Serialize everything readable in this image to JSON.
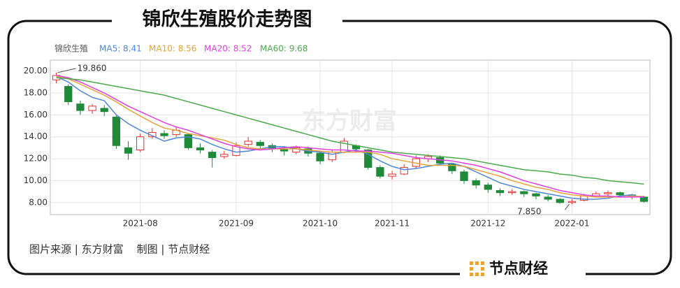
{
  "title": "锦欣生殖股价走势图",
  "source": "图片来源 | 东方财富    制图 | 节点财经",
  "brand": "节点财经",
  "chart_data": {
    "type": "candlestick",
    "stock_name": "锦欣生殖",
    "watermark": "东方财富",
    "categories": [
      null,
      null,
      null,
      null,
      null,
      null,
      null,
      "2021-08",
      null,
      null,
      null,
      null,
      null,
      null,
      null,
      "2021-09",
      null,
      null,
      null,
      null,
      null,
      null,
      "2021-10",
      null,
      null,
      null,
      null,
      null,
      "2021-11",
      null,
      null,
      null,
      null,
      null,
      null,
      null,
      "2021-12",
      null,
      null,
      null,
      null,
      null,
      null,
      "2022-01",
      null,
      null,
      null,
      null,
      null,
      null
    ],
    "open": [
      19.2,
      18.6,
      17.0,
      16.4,
      16.6,
      15.8,
      13.0,
      12.8,
      14.0,
      14.3,
      14.2,
      14.2,
      13.0,
      12.6,
      12.2,
      12.3,
      13.3,
      13.5,
      13.2,
      12.9,
      12.6,
      12.9,
      12.5,
      11.9,
      12.6,
      13.2,
      12.8,
      11.2,
      10.4,
      10.6,
      11.3,
      12.0,
      12.1,
      11.5,
      10.8,
      10.0,
      9.6,
      9.1,
      8.9,
      9.0,
      8.8,
      8.5,
      8.3,
      8.0,
      8.2,
      8.6,
      8.8,
      8.9,
      8.7,
      8.5
    ],
    "close": [
      19.6,
      17.2,
      16.4,
      16.8,
      16.3,
      13.2,
      12.5,
      14.0,
      14.4,
      14.1,
      14.6,
      13.0,
      12.8,
      12.1,
      12.4,
      13.2,
      13.6,
      13.2,
      12.9,
      12.7,
      13.0,
      12.5,
      11.8,
      12.6,
      13.6,
      12.9,
      11.2,
      10.4,
      10.6,
      11.2,
      12.0,
      12.2,
      11.6,
      10.9,
      10.0,
      9.6,
      9.2,
      8.9,
      9.0,
      8.8,
      8.6,
      8.3,
      8.0,
      8.1,
      8.6,
      8.8,
      8.9,
      8.7,
      8.6,
      8.1
    ],
    "high": [
      19.86,
      18.8,
      17.3,
      17.0,
      16.9,
      16.0,
      13.6,
      14.3,
      14.8,
      14.6,
      14.9,
      14.3,
      13.4,
      12.8,
      12.7,
      13.5,
      14.0,
      13.7,
      13.4,
      13.1,
      13.2,
      13.1,
      12.6,
      12.8,
      13.9,
      13.3,
      12.9,
      11.4,
      10.9,
      11.5,
      12.3,
      12.4,
      12.3,
      11.6,
      11.0,
      10.2,
      9.8,
      9.3,
      9.2,
      9.1,
      8.9,
      8.7,
      8.4,
      8.3,
      8.8,
      9.0,
      9.1,
      9.0,
      8.8,
      8.6
    ],
    "low": [
      18.9,
      16.9,
      16.0,
      16.1,
      15.9,
      12.9,
      11.9,
      12.6,
      13.8,
      13.8,
      14.0,
      12.8,
      12.5,
      11.2,
      12.0,
      12.2,
      13.1,
      12.9,
      12.6,
      12.3,
      12.4,
      12.2,
      11.5,
      11.7,
      12.5,
      12.6,
      11.0,
      10.2,
      10.1,
      10.5,
      11.1,
      11.7,
      11.4,
      10.6,
      9.7,
      9.3,
      8.9,
      8.6,
      8.7,
      8.5,
      8.3,
      8.1,
      7.9,
      7.85,
      8.1,
      8.5,
      8.6,
      8.5,
      8.3,
      8.0
    ],
    "up_color": "#e3322f",
    "down_color": "#1f8a3a",
    "series": [
      {
        "label": "MA5: 8.41",
        "color": "#4f86d9",
        "values": [
          19.5,
          19.0,
          18.2,
          17.6,
          17.3,
          16.0,
          15.2,
          14.6,
          14.1,
          13.6,
          13.9,
          14.0,
          13.8,
          13.3,
          12.9,
          12.6,
          12.7,
          12.9,
          13.1,
          13.1,
          12.9,
          12.7,
          12.6,
          12.4,
          12.6,
          12.8,
          12.4,
          11.8,
          11.3,
          11.0,
          11.1,
          11.3,
          11.5,
          11.6,
          11.3,
          10.8,
          10.3,
          9.8,
          9.5,
          9.2,
          9.0,
          8.8,
          8.6,
          8.4,
          8.3,
          8.3,
          8.4,
          8.6,
          8.7,
          8.41
        ]
      },
      {
        "label": "MA10: 8.56",
        "color": "#e3a53c",
        "values": [
          19.5,
          19.3,
          18.8,
          18.3,
          17.8,
          17.2,
          16.5,
          15.9,
          15.3,
          14.8,
          14.6,
          14.3,
          14.1,
          13.9,
          13.7,
          13.3,
          13.0,
          12.9,
          12.9,
          12.9,
          12.9,
          12.8,
          12.7,
          12.6,
          12.6,
          12.6,
          12.6,
          12.4,
          12.0,
          11.8,
          11.6,
          11.4,
          11.4,
          11.4,
          11.3,
          11.0,
          10.7,
          10.4,
          10.0,
          9.7,
          9.4,
          9.2,
          8.9,
          8.7,
          8.6,
          8.5,
          8.5,
          8.5,
          8.6,
          8.56
        ]
      },
      {
        "label": "MA20: 8.52",
        "color": "#e23fe2",
        "values": [
          19.6,
          19.4,
          19.0,
          18.5,
          18.0,
          17.4,
          16.8,
          16.3,
          15.8,
          15.3,
          14.9,
          14.6,
          14.2,
          13.8,
          13.4,
          13.1,
          12.9,
          12.8,
          12.9,
          13.0,
          13.1,
          13.0,
          12.9,
          12.8,
          12.8,
          12.7,
          12.7,
          12.6,
          12.5,
          12.3,
          12.1,
          12.0,
          11.9,
          11.8,
          11.6,
          11.4,
          11.1,
          10.8,
          10.4,
          10.0,
          9.7,
          9.4,
          9.1,
          8.9,
          8.7,
          8.6,
          8.6,
          8.5,
          8.5,
          8.52
        ]
      },
      {
        "label": "MA60: 9.68",
        "color": "#4caa4c",
        "values": [
          19.4,
          19.3,
          19.2,
          19.0,
          18.8,
          18.6,
          18.4,
          18.2,
          18.0,
          17.8,
          17.5,
          17.2,
          16.9,
          16.6,
          16.3,
          16.0,
          15.7,
          15.4,
          15.1,
          14.8,
          14.5,
          14.2,
          13.9,
          13.6,
          13.4,
          13.2,
          13.0,
          12.8,
          12.6,
          12.5,
          12.4,
          12.3,
          12.2,
          12.1,
          12.0,
          11.8,
          11.6,
          11.4,
          11.2,
          11.0,
          10.9,
          10.8,
          10.6,
          10.5,
          10.3,
          10.2,
          10.0,
          9.9,
          9.8,
          9.68
        ]
      }
    ],
    "annotations": [
      {
        "label": "19.860",
        "value": 19.86,
        "target": "high"
      },
      {
        "label": "7.850",
        "value": 7.85,
        "target": "low"
      }
    ],
    "ylim": [
      6.9,
      21
    ],
    "yticks": [
      {
        "value": 8,
        "label": "8.00"
      },
      {
        "value": 10,
        "label": "10.00"
      },
      {
        "value": 12,
        "label": "12.00"
      },
      {
        "value": 14,
        "label": "14.00"
      },
      {
        "value": 16,
        "label": "16.00"
      },
      {
        "value": 18,
        "label": "18.00"
      },
      {
        "value": 20,
        "label": "20.00"
      }
    ],
    "grid": true
  }
}
